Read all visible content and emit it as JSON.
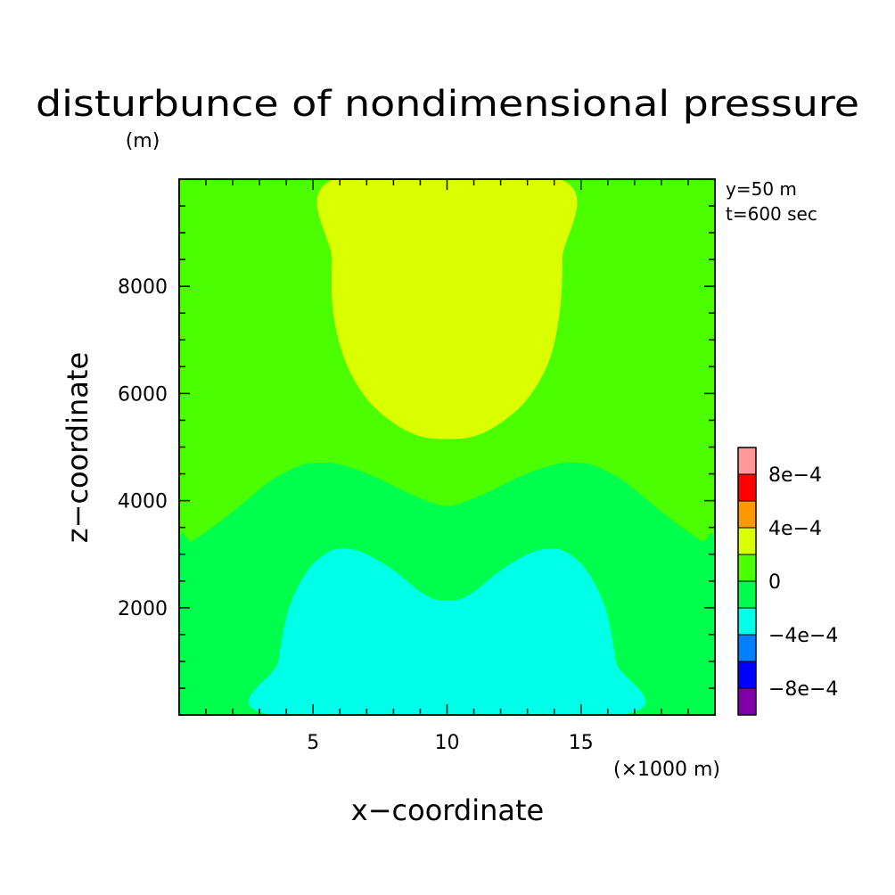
{
  "chart_data": {
    "type": "heatmap",
    "title": "disturbunce of nondimensional pressure",
    "ylabel_unit": "(m)",
    "xlabel": "x−coordinate",
    "ylabel": "z−coordinate",
    "xunit": "(×1000 m)",
    "annotations": [
      "y=50 m",
      "t=600 sec"
    ],
    "xlim": [
      0,
      20
    ],
    "ylim": [
      0,
      10000
    ],
    "xticks": [
      {
        "value": 5,
        "label": "5"
      },
      {
        "value": 10,
        "label": "10"
      },
      {
        "value": 15,
        "label": "15"
      }
    ],
    "yticks": [
      {
        "value": 2000,
        "label": "2000"
      },
      {
        "value": 4000,
        "label": "4000"
      },
      {
        "value": 6000,
        "label": "6000"
      },
      {
        "value": 8000,
        "label": "8000"
      }
    ],
    "grid": false,
    "colorbar": {
      "placement": "right",
      "levels": [
        {
          "min": -0.001,
          "max": -0.0008,
          "color": "#7f00a8"
        },
        {
          "min": -0.0008,
          "max": -0.0006,
          "color": "#0000ff"
        },
        {
          "min": -0.0006,
          "max": -0.0004,
          "color": "#0080ff"
        },
        {
          "min": -0.0004,
          "max": -0.0002,
          "color": "#00ffe6"
        },
        {
          "min": -0.0002,
          "max": 0,
          "color": "#00ff4d"
        },
        {
          "min": 0,
          "max": 0.0002,
          "color": "#4cff00"
        },
        {
          "min": 0.0002,
          "max": 0.0004,
          "color": "#d9ff00"
        },
        {
          "min": 0.0004,
          "max": 0.0006,
          "color": "#ff9900"
        },
        {
          "min": 0.0006,
          "max": 0.0008,
          "color": "#ff0000"
        },
        {
          "min": 0.0008,
          "max": 0.001,
          "color": "#ff9999"
        }
      ],
      "tick_labels": [
        {
          "value": -0.0008,
          "label": "−8e−4"
        },
        {
          "value": -0.0004,
          "label": "−4e−4"
        },
        {
          "value": 0,
          "label": "0"
        },
        {
          "value": 0.0004,
          "label": "4e−4"
        },
        {
          "value": 0.0008,
          "label": "8e−4"
        }
      ]
    },
    "regions": [
      {
        "name": "background",
        "color": "#4cff00",
        "points": [
          [
            0,
            0
          ],
          [
            20,
            0
          ],
          [
            20,
            10000
          ],
          [
            0,
            10000
          ]
        ]
      },
      {
        "name": "band",
        "color": "#00ff4d",
        "points": [
          [
            0,
            0
          ],
          [
            20,
            0
          ],
          [
            20,
            3150
          ],
          [
            19.5,
            3250
          ],
          [
            18.5,
            3600
          ],
          [
            17.5,
            4000
          ],
          [
            16.5,
            4400
          ],
          [
            15.5,
            4650
          ],
          [
            15,
            4700
          ],
          [
            14.3,
            4700
          ],
          [
            13.5,
            4600
          ],
          [
            12.5,
            4400
          ],
          [
            11.5,
            4150
          ],
          [
            10.5,
            3950
          ],
          [
            10,
            3900
          ],
          [
            9.5,
            3950
          ],
          [
            8.5,
            4150
          ],
          [
            7.5,
            4400
          ],
          [
            6.5,
            4600
          ],
          [
            5.7,
            4700
          ],
          [
            5,
            4700
          ],
          [
            4.5,
            4650
          ],
          [
            3.5,
            4400
          ],
          [
            2.5,
            4000
          ],
          [
            1.5,
            3600
          ],
          [
            0.5,
            3250
          ],
          [
            0,
            3150
          ]
        ]
      },
      {
        "name": "negative-lobe",
        "color": "#00ffe6",
        "points": [
          [
            3.5,
            0
          ],
          [
            3.7,
            1000
          ],
          [
            4.1,
            2000
          ],
          [
            4.8,
            2700
          ],
          [
            5.6,
            3050
          ],
          [
            6.3,
            3100
          ],
          [
            7,
            3000
          ],
          [
            8,
            2700
          ],
          [
            9,
            2300
          ],
          [
            9.6,
            2150
          ],
          [
            10,
            2150
          ],
          [
            10.4,
            2150
          ],
          [
            11,
            2300
          ],
          [
            12,
            2700
          ],
          [
            13,
            3000
          ],
          [
            13.7,
            3100
          ],
          [
            14.4,
            3050
          ],
          [
            15.2,
            2700
          ],
          [
            15.9,
            2000
          ],
          [
            16.3,
            1000
          ],
          [
            16.5,
            0
          ]
        ]
      },
      {
        "name": "positive-lobe",
        "color": "#d9ff00",
        "points": [
          [
            5.8,
            10000
          ],
          [
            5.7,
            8500
          ],
          [
            5.75,
            7500
          ],
          [
            6.2,
            6600
          ],
          [
            7,
            5900
          ],
          [
            8,
            5450
          ],
          [
            9,
            5200
          ],
          [
            10,
            5150
          ],
          [
            11,
            5200
          ],
          [
            12,
            5450
          ],
          [
            13,
            5900
          ],
          [
            13.8,
            6600
          ],
          [
            14.2,
            7500
          ],
          [
            14.3,
            8500
          ],
          [
            14.2,
            10000
          ]
        ]
      }
    ]
  }
}
